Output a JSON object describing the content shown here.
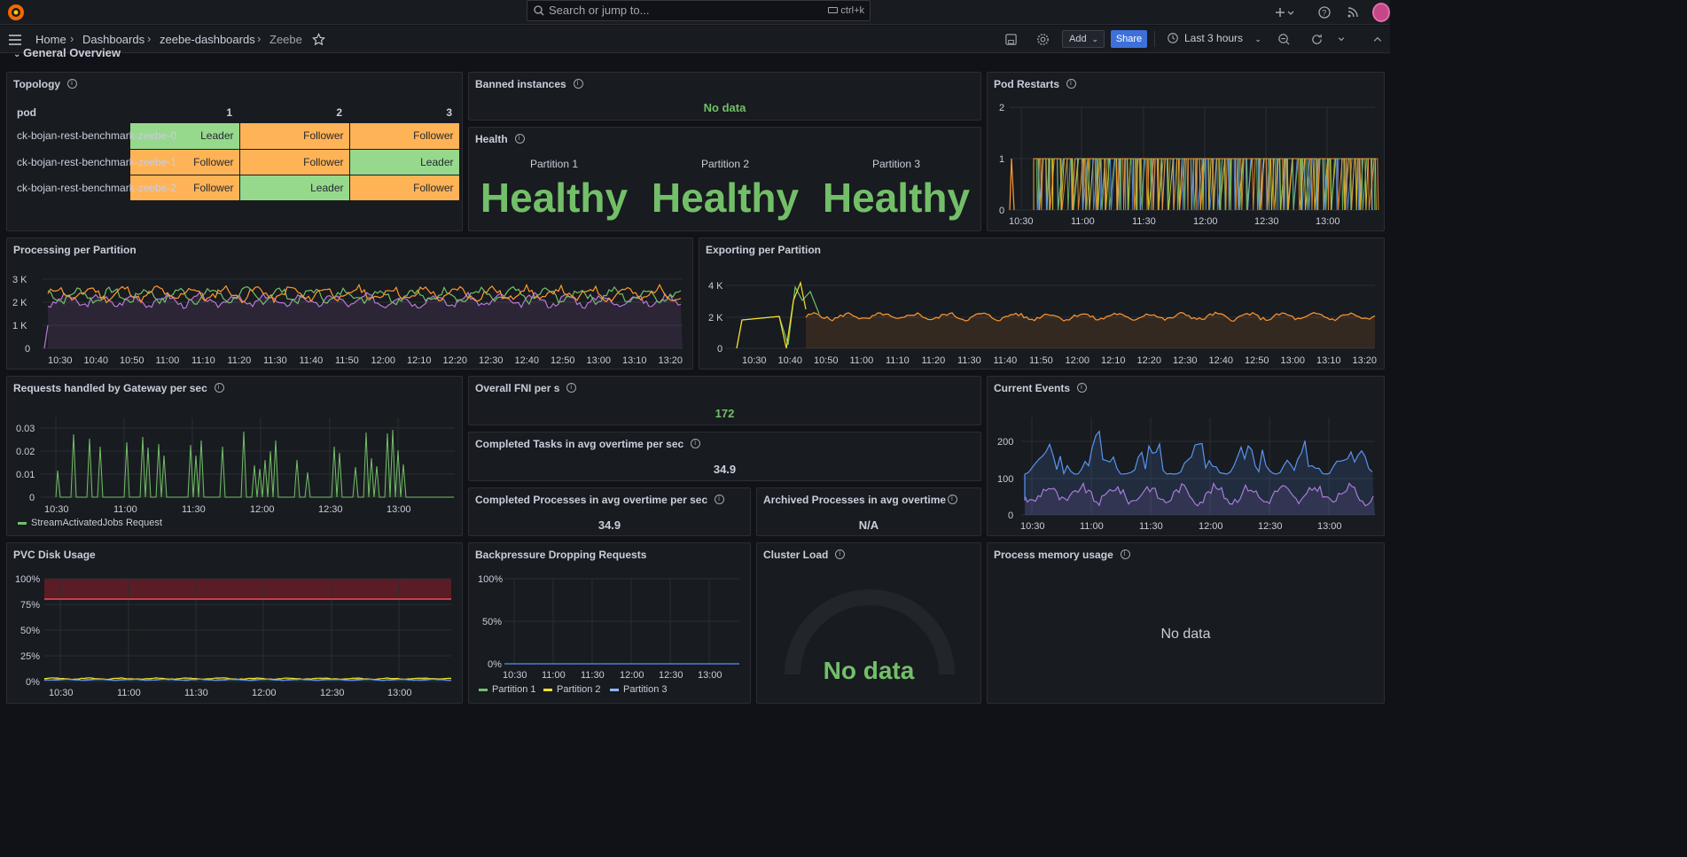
{
  "topbar": {
    "search_placeholder": "Search or jump to...",
    "search_shortcut": "ctrl+k"
  },
  "navbar": {
    "crumbs": [
      "Home",
      "Dashboards",
      "zeebe-dashboards",
      "Zeebe"
    ],
    "add_label": "Add",
    "share_label": "Share",
    "time_range": "Last 3 hours"
  },
  "row_title": "General Overview",
  "topology": {
    "title": "Topology",
    "headers": [
      "pod",
      "1",
      "2",
      "3"
    ],
    "rows": [
      {
        "pod": "ck-bojan-rest-benchmark-zeebe-0",
        "roles": [
          "Leader",
          "Follower",
          "Follower"
        ]
      },
      {
        "pod": "ck-bojan-rest-benchmark-zeebe-1",
        "roles": [
          "Follower",
          "Follower",
          "Leader"
        ]
      },
      {
        "pod": "ck-bojan-rest-benchmark-zeebe-2",
        "roles": [
          "Follower",
          "Leader",
          "Follower"
        ]
      }
    ]
  },
  "banned": {
    "title": "Banned instances",
    "value": "No data"
  },
  "health": {
    "title": "Health",
    "partitions": [
      {
        "label": "Partition 1",
        "value": "Healthy"
      },
      {
        "label": "Partition 2",
        "value": "Healthy"
      },
      {
        "label": "Partition 3",
        "value": "Healthy"
      }
    ]
  },
  "pod_restarts": {
    "title": "Pod Restarts",
    "y_ticks": [
      "2",
      "1",
      "0"
    ],
    "x_ticks": [
      "10:30",
      "11:00",
      "11:30",
      "12:00",
      "12:30",
      "13:00"
    ]
  },
  "processing": {
    "title": "Processing per Partition",
    "y_ticks": [
      "3 K",
      "2 K",
      "1 K",
      "0"
    ],
    "x_ticks": [
      "10:30",
      "10:40",
      "10:50",
      "11:00",
      "11:10",
      "11:20",
      "11:30",
      "11:40",
      "11:50",
      "12:00",
      "12:10",
      "12:20",
      "12:30",
      "12:40",
      "12:50",
      "13:00",
      "13:10",
      "13:20"
    ]
  },
  "exporting": {
    "title": "Exporting per Partition",
    "y_ticks": [
      "4 K",
      "2 K",
      "0"
    ],
    "x_ticks": [
      "10:30",
      "10:40",
      "10:50",
      "11:00",
      "11:10",
      "11:20",
      "11:30",
      "11:40",
      "11:50",
      "12:00",
      "12:10",
      "12:20",
      "12:30",
      "12:40",
      "12:50",
      "13:00",
      "13:10",
      "13:20"
    ]
  },
  "gateway": {
    "title": "Requests handled by Gateway per sec",
    "y_ticks": [
      "0.03",
      "0.02",
      "0.01",
      "0"
    ],
    "x_ticks": [
      "10:30",
      "11:00",
      "11:30",
      "12:00",
      "12:30",
      "13:00"
    ],
    "legend": "StreamActivatedJobs Request"
  },
  "fni": {
    "title": "Overall FNI per s",
    "value": "172"
  },
  "tasks": {
    "title": "Completed Tasks in avg overtime per sec",
    "value": "34.9"
  },
  "processes": {
    "title": "Completed Processes in avg overtime per sec",
    "value": "34.9"
  },
  "archived": {
    "title": "Archived Processes in avg overtime",
    "value": "N/A"
  },
  "events": {
    "title": "Current Events",
    "y_ticks": [
      "200",
      "100",
      "0"
    ],
    "x_ticks": [
      "10:30",
      "11:00",
      "11:30",
      "12:00",
      "12:30",
      "13:00"
    ]
  },
  "pvc": {
    "title": "PVC Disk Usage",
    "y_ticks": [
      "100%",
      "75%",
      "50%",
      "25%",
      "0%"
    ],
    "x_ticks": [
      "10:30",
      "11:00",
      "11:30",
      "12:00",
      "12:30",
      "13:00"
    ]
  },
  "backpressure": {
    "title": "Backpressure Dropping Requests",
    "y_ticks": [
      "100%",
      "50%",
      "0%"
    ],
    "x_ticks": [
      "10:30",
      "11:00",
      "11:30",
      "12:00",
      "12:30",
      "13:00"
    ],
    "legend": [
      "Partition 1",
      "Partition 2",
      "Partition 3"
    ]
  },
  "cluster_load": {
    "title": "Cluster Load",
    "value": "No data"
  },
  "memory": {
    "title": "Process memory usage",
    "value": "No data"
  },
  "colors": {
    "green": "#73bf69",
    "yellow": "#fade2a",
    "blue": "#5794f2",
    "orange": "#ff9830",
    "purple": "#b877d9",
    "red": "#f2495c"
  }
}
